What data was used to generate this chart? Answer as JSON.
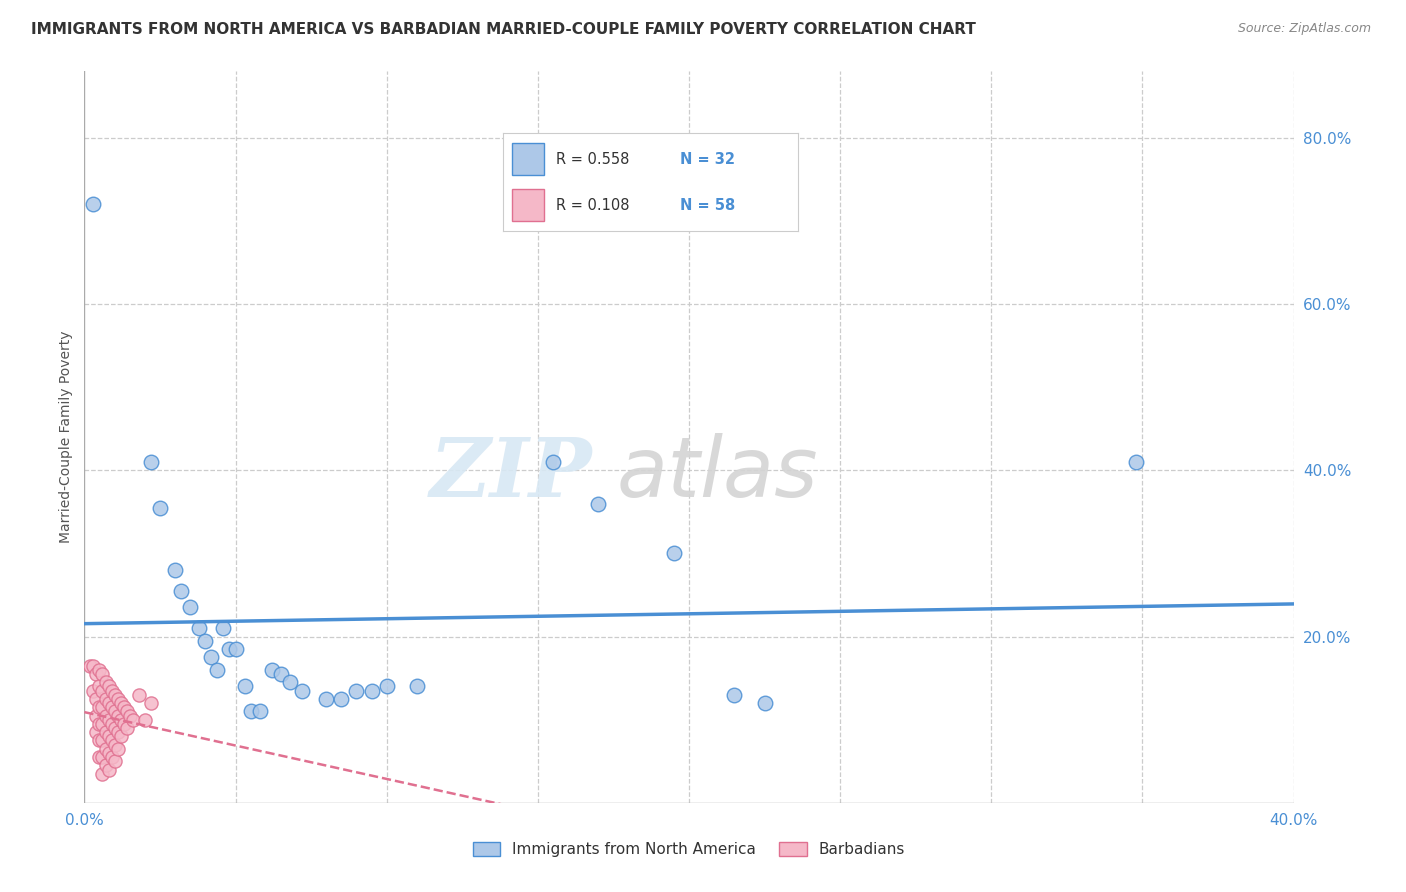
{
  "title": "IMMIGRANTS FROM NORTH AMERICA VS BARBADIAN MARRIED-COUPLE FAMILY POVERTY CORRELATION CHART",
  "source": "Source: ZipAtlas.com",
  "ylabel": "Married-Couple Family Poverty",
  "xlim": [
    0,
    0.4
  ],
  "ylim": [
    0,
    0.88
  ],
  "xticks": [
    0.0,
    0.05,
    0.1,
    0.15,
    0.2,
    0.25,
    0.3,
    0.35,
    0.4
  ],
  "xtick_labels_show": [
    0.0,
    0.4
  ],
  "yticks": [
    0.2,
    0.4,
    0.6,
    0.8
  ],
  "ytick_labels": [
    "20.0%",
    "40.0%",
    "60.0%",
    "80.0%"
  ],
  "blue_R": 0.558,
  "blue_N": 32,
  "pink_R": 0.108,
  "pink_N": 58,
  "blue_color": "#adc8e8",
  "pink_color": "#f5b8c8",
  "blue_line_color": "#4a8fd4",
  "pink_line_color": "#e07090",
  "blue_scatter": [
    [
      0.003,
      0.72
    ],
    [
      0.022,
      0.41
    ],
    [
      0.025,
      0.355
    ],
    [
      0.03,
      0.28
    ],
    [
      0.032,
      0.255
    ],
    [
      0.035,
      0.235
    ],
    [
      0.038,
      0.21
    ],
    [
      0.04,
      0.195
    ],
    [
      0.042,
      0.175
    ],
    [
      0.044,
      0.16
    ],
    [
      0.046,
      0.21
    ],
    [
      0.048,
      0.185
    ],
    [
      0.05,
      0.185
    ],
    [
      0.053,
      0.14
    ],
    [
      0.055,
      0.11
    ],
    [
      0.058,
      0.11
    ],
    [
      0.062,
      0.16
    ],
    [
      0.065,
      0.155
    ],
    [
      0.068,
      0.145
    ],
    [
      0.072,
      0.135
    ],
    [
      0.08,
      0.125
    ],
    [
      0.085,
      0.125
    ],
    [
      0.09,
      0.135
    ],
    [
      0.095,
      0.135
    ],
    [
      0.1,
      0.14
    ],
    [
      0.11,
      0.14
    ],
    [
      0.155,
      0.41
    ],
    [
      0.17,
      0.36
    ],
    [
      0.195,
      0.3
    ],
    [
      0.215,
      0.13
    ],
    [
      0.225,
      0.12
    ],
    [
      0.348,
      0.41
    ]
  ],
  "pink_scatter": [
    [
      0.002,
      0.165
    ],
    [
      0.003,
      0.165
    ],
    [
      0.003,
      0.135
    ],
    [
      0.004,
      0.155
    ],
    [
      0.004,
      0.125
    ],
    [
      0.004,
      0.105
    ],
    [
      0.004,
      0.085
    ],
    [
      0.005,
      0.16
    ],
    [
      0.005,
      0.14
    ],
    [
      0.005,
      0.115
    ],
    [
      0.005,
      0.095
    ],
    [
      0.005,
      0.075
    ],
    [
      0.005,
      0.055
    ],
    [
      0.006,
      0.155
    ],
    [
      0.006,
      0.135
    ],
    [
      0.006,
      0.115
    ],
    [
      0.006,
      0.095
    ],
    [
      0.006,
      0.075
    ],
    [
      0.006,
      0.055
    ],
    [
      0.006,
      0.035
    ],
    [
      0.007,
      0.145
    ],
    [
      0.007,
      0.125
    ],
    [
      0.007,
      0.105
    ],
    [
      0.007,
      0.085
    ],
    [
      0.007,
      0.065
    ],
    [
      0.007,
      0.045
    ],
    [
      0.008,
      0.14
    ],
    [
      0.008,
      0.12
    ],
    [
      0.008,
      0.1
    ],
    [
      0.008,
      0.08
    ],
    [
      0.008,
      0.06
    ],
    [
      0.008,
      0.04
    ],
    [
      0.009,
      0.135
    ],
    [
      0.009,
      0.115
    ],
    [
      0.009,
      0.095
    ],
    [
      0.009,
      0.075
    ],
    [
      0.009,
      0.055
    ],
    [
      0.01,
      0.13
    ],
    [
      0.01,
      0.11
    ],
    [
      0.01,
      0.09
    ],
    [
      0.01,
      0.07
    ],
    [
      0.01,
      0.05
    ],
    [
      0.011,
      0.125
    ],
    [
      0.011,
      0.105
    ],
    [
      0.011,
      0.085
    ],
    [
      0.011,
      0.065
    ],
    [
      0.012,
      0.12
    ],
    [
      0.012,
      0.1
    ],
    [
      0.012,
      0.08
    ],
    [
      0.013,
      0.115
    ],
    [
      0.013,
      0.095
    ],
    [
      0.014,
      0.11
    ],
    [
      0.014,
      0.09
    ],
    [
      0.015,
      0.105
    ],
    [
      0.016,
      0.1
    ],
    [
      0.018,
      0.13
    ],
    [
      0.02,
      0.1
    ],
    [
      0.022,
      0.12
    ]
  ],
  "watermark_zip": "ZIP",
  "watermark_atlas": "atlas",
  "background_color": "#ffffff",
  "grid_color": "#cccccc"
}
